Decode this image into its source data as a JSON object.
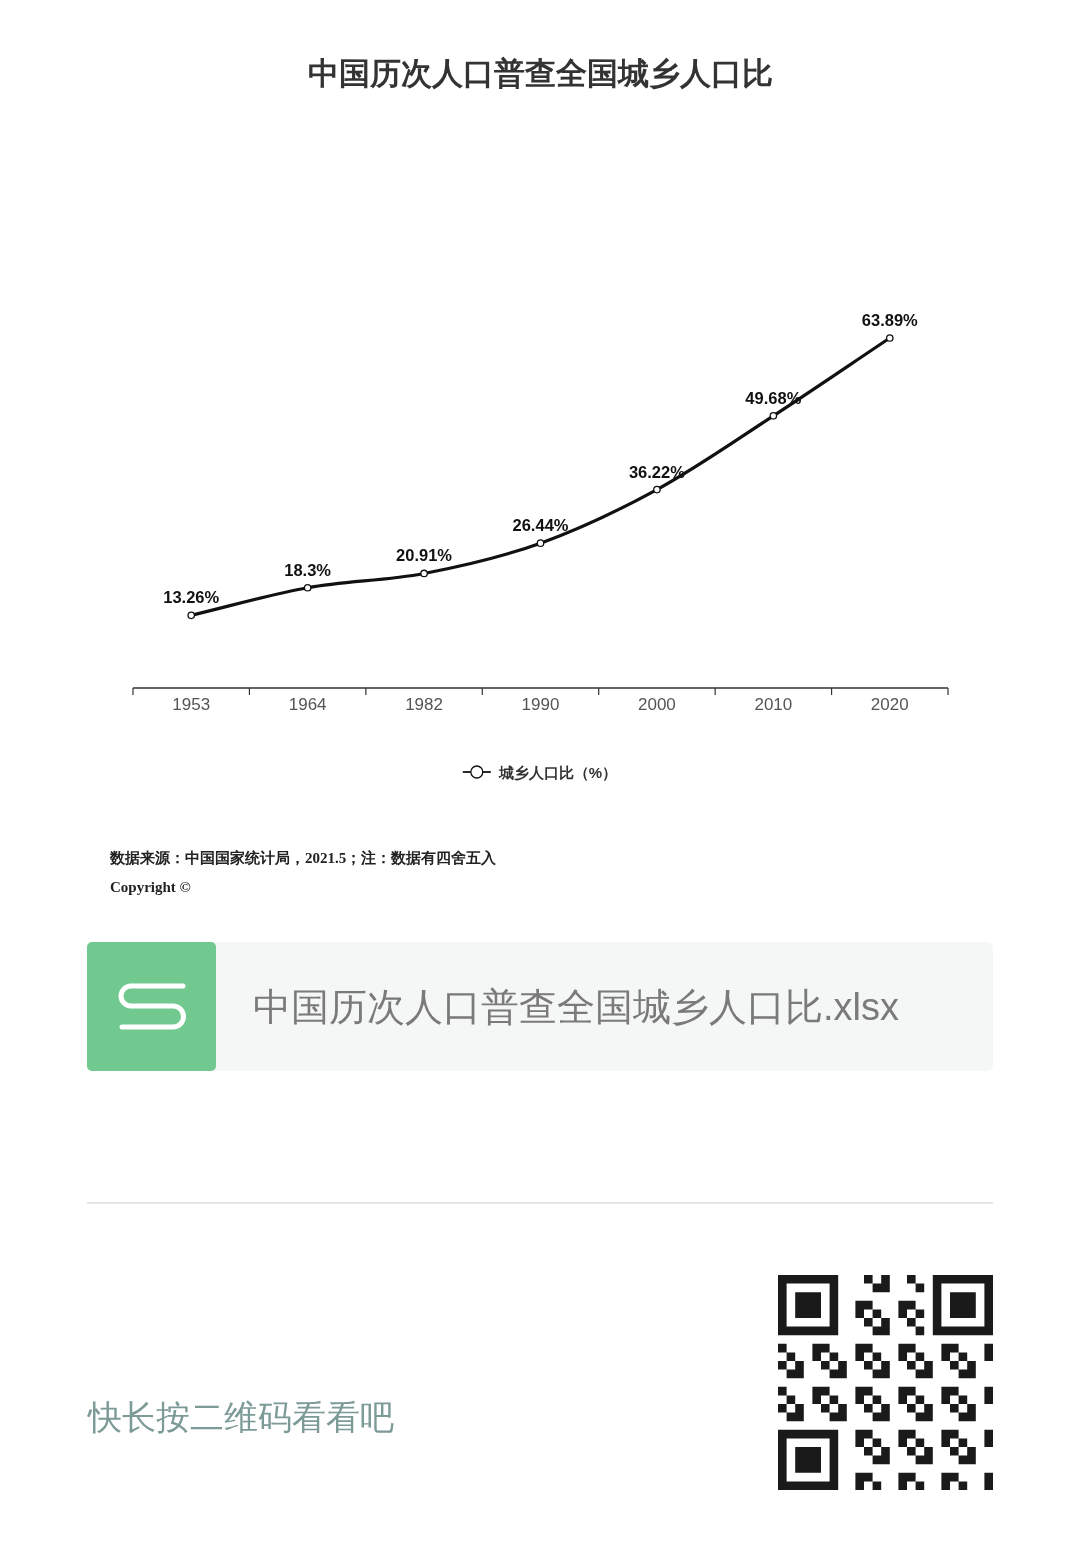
{
  "chart_data": {
    "type": "line",
    "title": "中国历次人口普查全国城乡人口比",
    "categories": [
      "1953",
      "1964",
      "1982",
      "1990",
      "2000",
      "2010",
      "2020"
    ],
    "series": [
      {
        "name": "城乡人口比（%）",
        "color": "#111111",
        "values": [
          13.26,
          18.3,
          20.91,
          26.44,
          36.22,
          49.68,
          63.89
        ],
        "value_labels": [
          "13.26%",
          "18.3%",
          "20.91%",
          "26.44%",
          "36.22%",
          "49.68%",
          "63.89%"
        ]
      }
    ],
    "marker": "circle",
    "line_style": "solid",
    "legend": "bottom",
    "annotations": [
      "数据来源：中国国家统计局，2021.5；注：数据有四舍五入",
      "Copyright ©",
      "中国历次人口普查全国城乡人口比.xlsx",
      "快长按二维码看看吧"
    ]
  }
}
